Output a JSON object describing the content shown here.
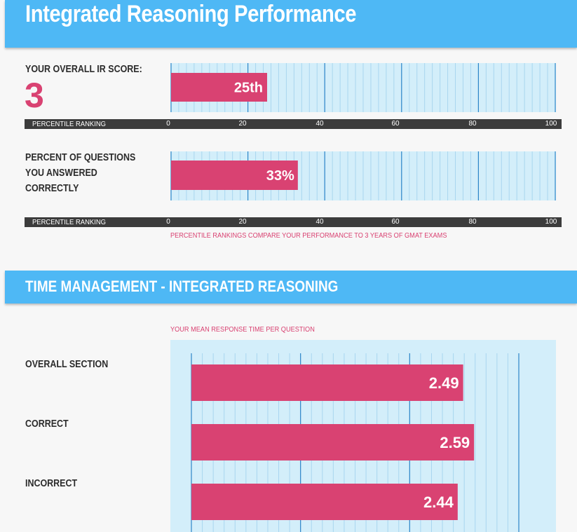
{
  "page": {
    "title": "Integrated Reasoning Performance",
    "time_title": "TIME MANAGEMENT - INTEGRATED REASONING"
  },
  "colors": {
    "banner": "#4eb8f5",
    "bar": "#d94272",
    "plot_bg": "#d3eefa",
    "axis_bar": "#3c3c3c",
    "major_grid": "#2f86c8",
    "minor_grid": "#a9d6ef"
  },
  "score": {
    "label": "YOUR OVERALL IR SCORE:",
    "value": "3"
  },
  "percent": {
    "label_lines": [
      "PERCENT OF QUESTIONS",
      "YOU ANSWERED",
      "CORRECTLY"
    ]
  },
  "axis": {
    "name": "PERCENTILE RANKING",
    "ticks": [
      "0",
      "20",
      "40",
      "60",
      "80",
      "100"
    ]
  },
  "note": "PERCENTILE RANKINGS COMPARE YOUR PERFORMANCE TO 3 YEARS OF GMAT EXAMS",
  "time": {
    "chart_title": "YOUR MEAN RESPONSE TIME PER QUESTION",
    "labels": [
      "OVERALL SECTION",
      "CORRECT",
      "INCORRECT"
    ]
  },
  "chart_data": [
    {
      "type": "bar",
      "orientation": "horizontal",
      "categories": [
        "YOUR OVERALL IR SCORE:"
      ],
      "values": [
        25
      ],
      "value_labels": [
        "25th"
      ],
      "xlabel": "PERCENTILE RANKING",
      "xlim": [
        0,
        100
      ],
      "grid": true
    },
    {
      "type": "bar",
      "orientation": "horizontal",
      "categories": [
        "PERCENT OF QUESTIONS YOU ANSWERED CORRECTLY"
      ],
      "values": [
        33
      ],
      "value_labels": [
        "33%"
      ],
      "xlabel": "PERCENTILE RANKING",
      "xlim": [
        0,
        100
      ],
      "grid": true
    },
    {
      "type": "bar",
      "orientation": "horizontal",
      "title": "YOUR MEAN RESPONSE TIME PER QUESTION",
      "categories": [
        "OVERALL SECTION",
        "CORRECT",
        "INCORRECT"
      ],
      "values": [
        2.49,
        2.59,
        2.44
      ],
      "value_labels": [
        "2.49",
        "2.59",
        "2.44"
      ],
      "xlim": [
        0,
        3
      ],
      "grid": true
    }
  ]
}
